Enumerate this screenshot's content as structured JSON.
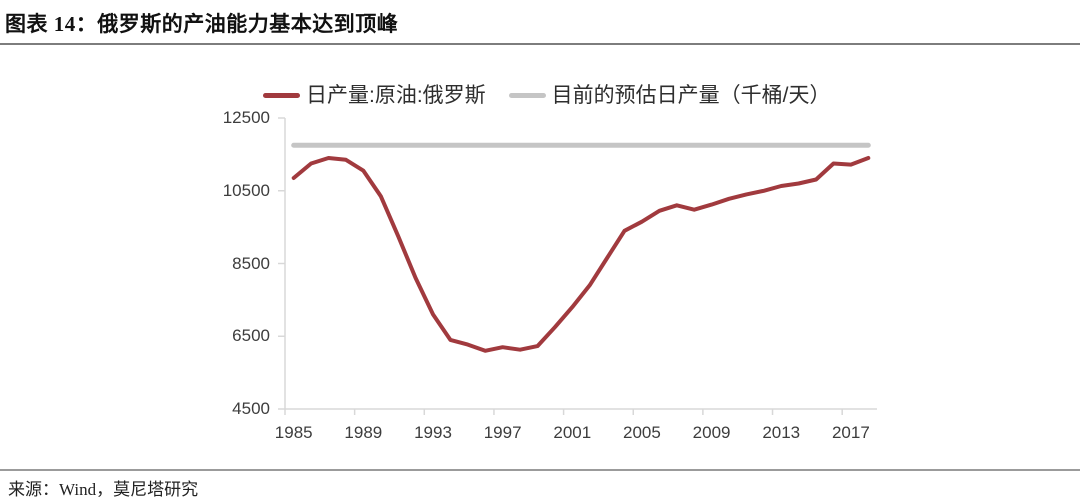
{
  "header": {
    "title": "图表 14：俄罗斯的产油能力基本达到顶峰"
  },
  "legend": [
    {
      "label": "日产量:原油:俄罗斯",
      "color": "#A13A3E"
    },
    {
      "label": "目前的预估日产量（千桶/天）",
      "color": "#C5C5C5"
    }
  ],
  "chart_data": {
    "type": "line",
    "title": "俄罗斯的产油能力基本达到顶峰",
    "xlabel": "",
    "ylabel": "千桶/天",
    "ylim": [
      4500,
      12500
    ],
    "y_ticks": [
      12500,
      10500,
      8500,
      6500,
      4500
    ],
    "x_tick_labels": [
      "1985",
      "1989",
      "1993",
      "1997",
      "2001",
      "2005",
      "2009",
      "2013",
      "2017"
    ],
    "grid": false,
    "legend_position": "top",
    "axis_color": "#D8D8D8",
    "x": [
      1985,
      1986,
      1987,
      1988,
      1989,
      1990,
      1991,
      1992,
      1993,
      1994,
      1995,
      1996,
      1997,
      1998,
      1999,
      2000,
      2001,
      2002,
      2003,
      2004,
      2005,
      2006,
      2007,
      2008,
      2009,
      2010,
      2011,
      2012,
      2013,
      2014,
      2015,
      2016,
      2017,
      2018
    ],
    "series": [
      {
        "name": "日产量:原油:俄罗斯",
        "color": "#A13A3E",
        "values": [
          10850,
          11250,
          11400,
          11350,
          11050,
          10350,
          9250,
          8100,
          7100,
          6400,
          6270,
          6100,
          6200,
          6130,
          6230,
          6750,
          7300,
          7900,
          8650,
          9400,
          9650,
          9950,
          10100,
          9980,
          10120,
          10280,
          10400,
          10500,
          10630,
          10700,
          10810,
          11250,
          11220,
          11400
        ]
      }
    ],
    "reference_line": {
      "name": "目前的预估日产量（千桶/天）",
      "value": 11750,
      "color": "#C5C5C5"
    }
  },
  "footer": {
    "source": "来源：Wind，莫尼塔研究"
  }
}
